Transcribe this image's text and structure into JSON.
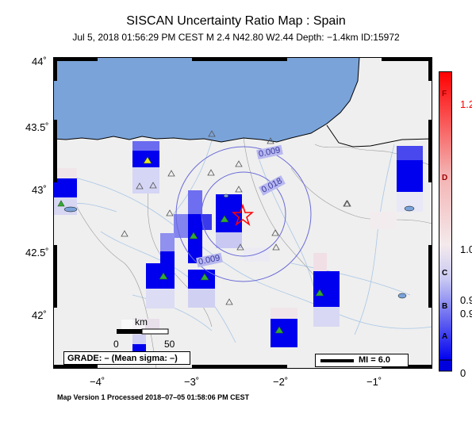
{
  "header": {
    "title": "SISCAN Uncertainty Ratio Map : Spain",
    "subtitle": "Jul  5, 2018 01:56:29 PM CEST   M 2.4   N42.80 W2.44   Depth: −1.4km   ID:15972"
  },
  "axes": {
    "lat_labels": [
      "44˚",
      "43.5˚",
      "43˚",
      "42.5˚",
      "42˚"
    ],
    "lon_labels": [
      "−4˚",
      "−3˚",
      "−2˚",
      "−1˚"
    ]
  },
  "contours": {
    "labels": [
      "0.009",
      "0.018",
      "0.009"
    ]
  },
  "scale": {
    "title": "km",
    "ticks": [
      "0",
      "50"
    ]
  },
  "grade_text": "GRADE: – (Mean sigma: –)",
  "mi_text": "MI = 6.0",
  "colorbar": {
    "letters": [
      "F",
      "D",
      "C",
      "B",
      "A"
    ],
    "values": [
      "1.2",
      "1.0",
      "0.9",
      "0.9",
      "0"
    ]
  },
  "footer": "Map Version 1 Processed 2018–07–05 01:58:06 PM CEST",
  "colors": {
    "sea": "#7aa3d9",
    "land": "#efefef",
    "cell_blue": "#0000ee",
    "epicenter": "#ff0000"
  },
  "icons": {
    "epicenter": "star-icon",
    "station": "triangle-icon"
  }
}
